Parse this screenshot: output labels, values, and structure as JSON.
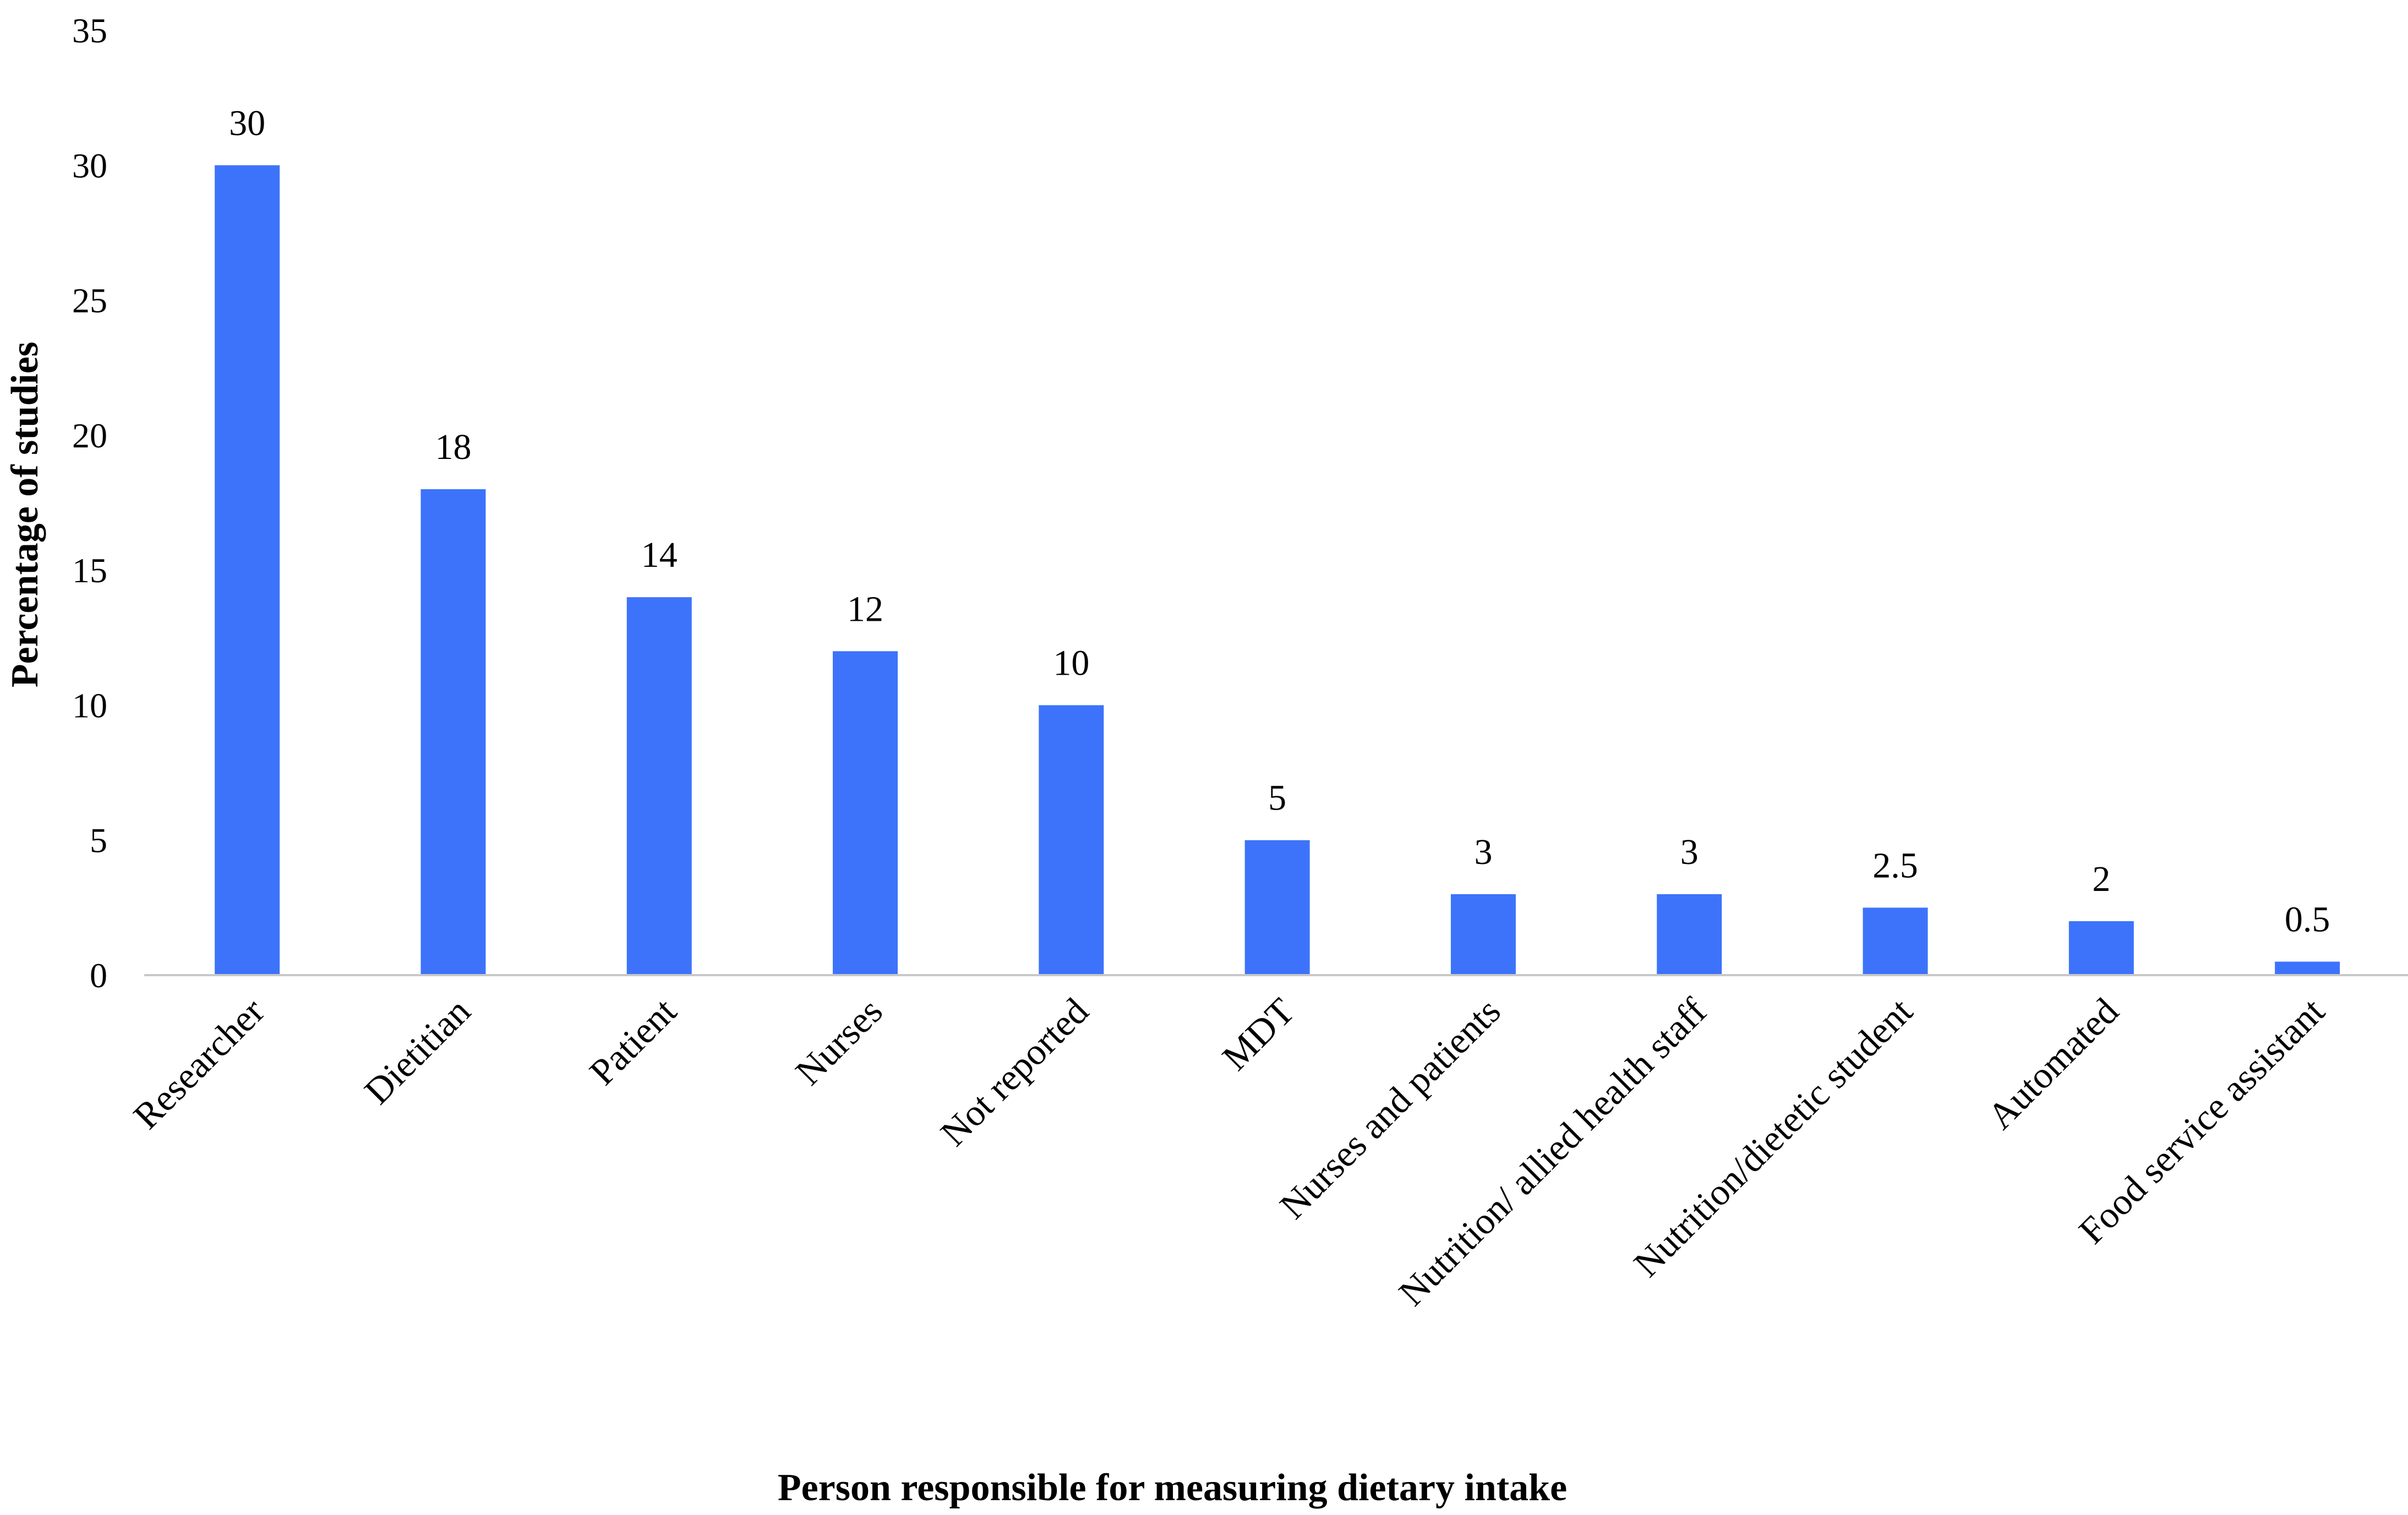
{
  "chart_data": {
    "type": "bar",
    "categories": [
      "Researcher",
      "Dietitian",
      "Patient",
      "Nurses",
      "Not reported",
      "MDT",
      "Nurses and patients",
      "Nutrition/ allied health staff",
      "Nutrition/dietetic student",
      "Automated",
      "Food service assistant"
    ],
    "values": [
      30,
      18,
      14,
      12,
      10,
      5,
      3,
      3,
      2.5,
      2,
      0.5
    ],
    "data_labels": [
      "30",
      "18",
      "14",
      "12",
      "10",
      "5",
      "3",
      "3",
      "2.5",
      "2",
      "0.5"
    ],
    "xlabel": "Person responsible for measuring dietary intake",
    "ylabel": "Percentage of studies",
    "ylim": [
      0,
      35
    ],
    "yticks": [
      "0",
      "5",
      "10",
      "15",
      "20",
      "25",
      "30",
      "35"
    ],
    "bar_color": "#3d73fb",
    "axis_color": "#c8c8c8",
    "grid": false,
    "legend": "none"
  }
}
